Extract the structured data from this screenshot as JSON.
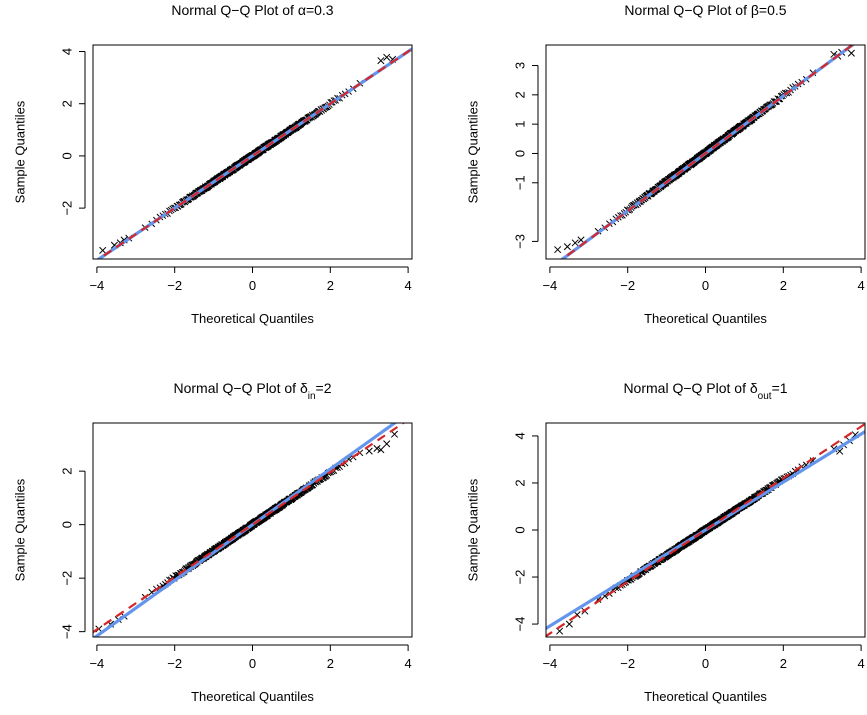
{
  "figure": {
    "background": "#ffffff",
    "point_color": "#000000",
    "fit_line_color": "#6495ed",
    "reference_line_color": "#d62728"
  },
  "chart_data": [
    {
      "type": "scatter",
      "title_prefix": "Normal Q−Q Plot of ",
      "param_symbol": "α",
      "param_sub": "",
      "param_value": "=0.3",
      "xlabel": "Theoretical Quantiles",
      "ylabel": "Sample Quantiles",
      "xlim": [
        -4.1,
        4.1
      ],
      "ylim": [
        -3.95,
        4.25
      ],
      "xticks": [
        -4,
        -2,
        0,
        2,
        4
      ],
      "yticks": [
        -2,
        0,
        2,
        4
      ],
      "x_tick_labels": [
        "−4",
        "−2",
        "0",
        "2",
        "4"
      ],
      "y_tick_labels": [
        "−2",
        "0",
        "2",
        "4"
      ],
      "marker": "x",
      "quantile_range": [
        -3.95,
        3.95
      ],
      "point_slope": 1.0,
      "point_intercept": 0.0,
      "fit_line": {
        "slope": 1.0,
        "intercept": 0.0
      },
      "reference_line": {
        "slope": 1.0,
        "intercept": 0.0
      },
      "outliers": [
        [
          -3.85,
          -3.62
        ],
        [
          -3.55,
          -3.42
        ],
        [
          -3.4,
          -3.33
        ],
        [
          -3.3,
          -3.22
        ],
        [
          -3.18,
          -3.15
        ],
        [
          3.3,
          3.65
        ],
        [
          3.45,
          3.78
        ],
        [
          3.6,
          3.7
        ]
      ]
    },
    {
      "type": "scatter",
      "title_prefix": "Normal Q−Q Plot of ",
      "param_symbol": "β",
      "param_sub": "",
      "param_value": "=0.5",
      "xlabel": "Theoretical Quantiles",
      "ylabel": "Sample Quantiles",
      "xlim": [
        -4.1,
        4.1
      ],
      "ylim": [
        -3.6,
        3.7
      ],
      "xticks": [
        -4,
        -2,
        0,
        2,
        4
      ],
      "yticks": [
        -3,
        -1,
        0,
        1,
        2,
        3
      ],
      "x_tick_labels": [
        "−4",
        "−2",
        "0",
        "2",
        "4"
      ],
      "y_tick_labels": [
        "−3",
        "−1",
        "0",
        "1",
        "2",
        "3"
      ],
      "marker": "x",
      "quantile_range": [
        -3.95,
        3.95
      ],
      "point_slope": 0.98,
      "point_intercept": 0.02,
      "fit_line": {
        "slope": 0.98,
        "intercept": 0.0
      },
      "reference_line": {
        "slope": 0.98,
        "intercept": 0.0
      },
      "outliers": [
        [
          -3.8,
          -3.28
        ],
        [
          -3.55,
          -3.18
        ],
        [
          -3.35,
          -3.05
        ],
        [
          -3.2,
          -2.95
        ],
        [
          3.3,
          3.38
        ],
        [
          3.5,
          3.45
        ],
        [
          3.75,
          3.42
        ],
        [
          3.4,
          3.32
        ]
      ]
    },
    {
      "type": "scatter",
      "title_prefix": "Normal Q−Q Plot of ",
      "param_symbol": "δ",
      "param_sub": "in",
      "param_value": "=2",
      "xlabel": "Theoretical Quantiles",
      "ylabel": "Sample Quantiles",
      "xlim": [
        -4.1,
        4.1
      ],
      "ylim": [
        -4.2,
        3.8
      ],
      "xticks": [
        -4,
        -2,
        0,
        2,
        4
      ],
      "yticks": [
        -4,
        -2,
        0,
        2
      ],
      "x_tick_labels": [
        "−4",
        "−2",
        "0",
        "2",
        "4"
      ],
      "y_tick_labels": [
        "−4",
        "−2",
        "0",
        "2"
      ],
      "marker": "x",
      "quantile_range": [
        -3.95,
        3.95
      ],
      "point_slope": 0.98,
      "point_intercept": 0.0,
      "fit_line": {
        "slope": 1.04,
        "intercept": 0.0
      },
      "reference_line": {
        "slope": 0.98,
        "intercept": 0.0
      },
      "outliers": [
        [
          -3.95,
          -3.9
        ],
        [
          -3.65,
          -3.72
        ],
        [
          -3.45,
          -3.55
        ],
        [
          -3.3,
          -3.42
        ],
        [
          3.0,
          2.75
        ],
        [
          3.2,
          2.85
        ],
        [
          3.45,
          3.02
        ],
        [
          3.65,
          3.38
        ],
        [
          3.3,
          2.8
        ]
      ]
    },
    {
      "type": "scatter",
      "title_prefix": "Normal Q−Q Plot of ",
      "param_symbol": "δ",
      "param_sub": "out",
      "param_value": "=1",
      "xlabel": "Theoretical Quantiles",
      "ylabel": "Sample Quantiles",
      "xlim": [
        -4.1,
        4.1
      ],
      "ylim": [
        -4.55,
        4.55
      ],
      "xticks": [
        -4,
        -2,
        0,
        2,
        4
      ],
      "yticks": [
        -4,
        -2,
        0,
        2,
        4
      ],
      "x_tick_labels": [
        "−4",
        "−2",
        "0",
        "2",
        "4"
      ],
      "y_tick_labels": [
        "−4",
        "−2",
        "0",
        "2",
        "4"
      ],
      "marker": "x",
      "quantile_range": [
        -3.95,
        3.95
      ],
      "point_slope": 1.08,
      "point_intercept": 0.0,
      "fit_line": {
        "slope": 1.02,
        "intercept": 0.0
      },
      "reference_line": {
        "slope": 1.1,
        "intercept": 0.0
      },
      "outliers": [
        [
          -3.75,
          -4.3
        ],
        [
          -3.5,
          -4.0
        ],
        [
          -3.3,
          -3.6
        ],
        [
          -3.1,
          -3.45
        ],
        [
          3.3,
          3.45
        ],
        [
          3.55,
          3.62
        ],
        [
          3.7,
          3.8
        ],
        [
          3.85,
          4.05
        ],
        [
          3.45,
          3.35
        ]
      ]
    }
  ]
}
